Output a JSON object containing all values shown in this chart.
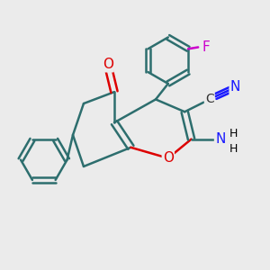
{
  "bg_color": "#ebebeb",
  "bond_color": "#2d6e6e",
  "atom_colors": {
    "O": "#dd0000",
    "N": "#1a1aff",
    "F": "#cc00cc",
    "C": "#333333"
  },
  "figsize": [
    3.0,
    3.0
  ],
  "dpi": 100
}
